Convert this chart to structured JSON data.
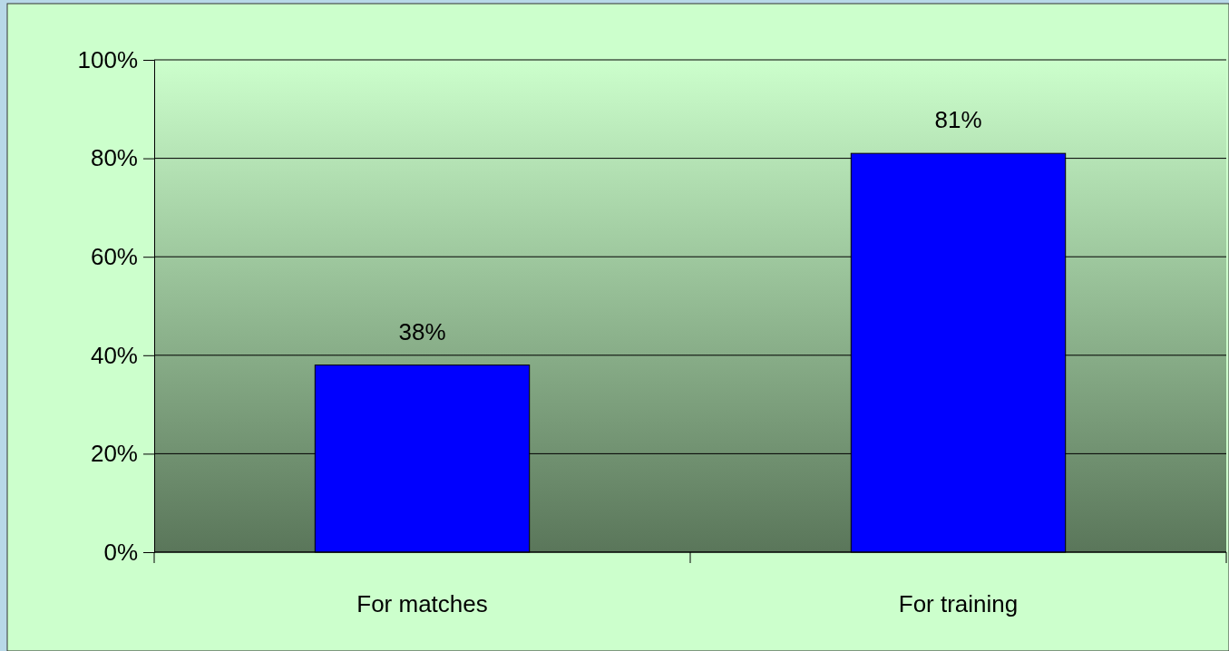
{
  "chart_data": {
    "type": "bar",
    "categories": [
      "For matches",
      "For training"
    ],
    "values": [
      38,
      81
    ],
    "color": "#0000ff",
    "ylim": [
      0,
      100
    ],
    "yticks": [
      {
        "value": 0,
        "label": "0%"
      },
      {
        "value": 20,
        "label": "20%"
      },
      {
        "value": 40,
        "label": "40%"
      },
      {
        "value": 60,
        "label": "60%"
      },
      {
        "value": 80,
        "label": "80%"
      },
      {
        "value": 100,
        "label": "100%"
      }
    ],
    "value_labels": [
      "38%",
      "81%"
    ],
    "grid": "y"
  }
}
